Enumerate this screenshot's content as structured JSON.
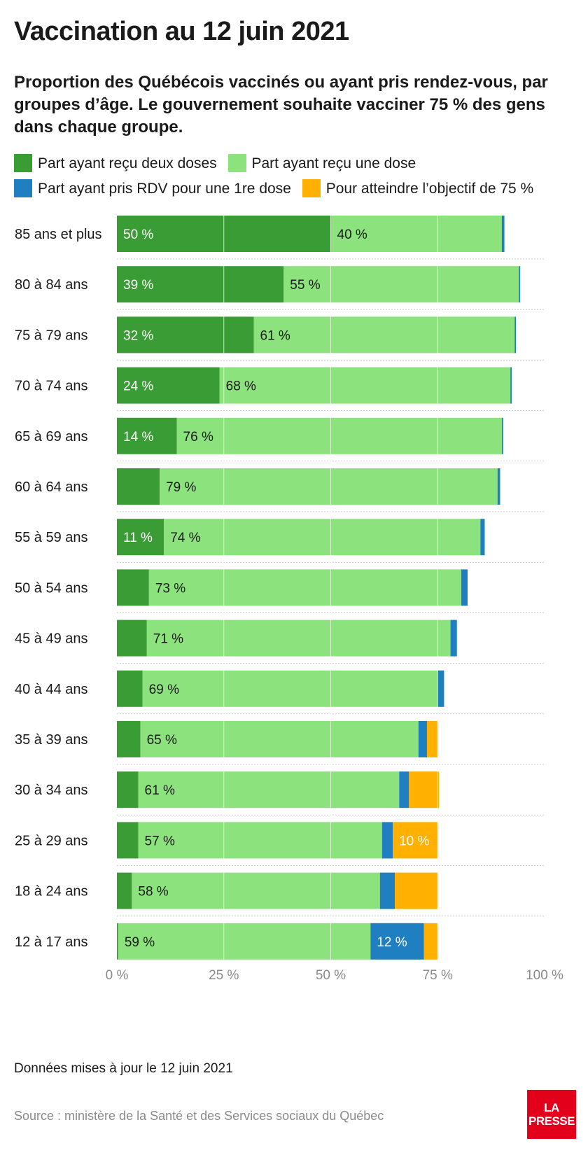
{
  "title": "Vaccination au 12 juin 2021",
  "subtitle": "Proportion des Québécois vaccinés ou ayant pris rendez-vous, par groupes d’âge. Le gouvernement souhaite vacciner 75 % des gens dans chaque groupe.",
  "legend": [
    {
      "label": "Part ayant reçu deux doses",
      "color": "#3a9c35"
    },
    {
      "label": "Part ayant reçu une dose",
      "color": "#8ce27c"
    },
    {
      "label": "Part ayant pris RDV pour une 1re dose",
      "color": "#1f7fc1"
    },
    {
      "label": "Pour atteindre l’objectif de 75 %",
      "color": "#ffb000"
    }
  ],
  "chart_data": {
    "type": "bar",
    "orientation": "horizontal",
    "stacked": true,
    "categories": [
      "85 ans et plus",
      "80 à 84 ans",
      "75 à 79 ans",
      "70 à 74 ans",
      "65 à 69 ans",
      "60 à 64 ans",
      "55 à 59 ans",
      "50 à 54 ans",
      "45 à 49 ans",
      "40 à 44 ans",
      "35 à 39 ans",
      "30 à 34 ans",
      "25 à 29 ans",
      "18 à 24 ans",
      "12 à 17 ans"
    ],
    "series": [
      {
        "name": "Part ayant reçu deux doses",
        "color": "#3a9c35",
        "values": [
          50,
          39,
          32,
          24,
          14,
          10,
          11,
          7.5,
          7,
          6,
          5.5,
          5,
          5,
          3.5,
          0.3
        ],
        "labels": [
          "50 %",
          "39 %",
          "32 %",
          "24 %",
          "14 %",
          "",
          "11 %",
          "",
          "",
          "",
          "",
          "",
          "",
          "",
          ""
        ]
      },
      {
        "name": "Part ayant reçu une dose",
        "color": "#8ce27c",
        "values": [
          40,
          55,
          61,
          68,
          76,
          79,
          74,
          73,
          71,
          69,
          65,
          61,
          57,
          58,
          59
        ],
        "labels": [
          "40 %",
          "55 %",
          "61 %",
          "68 %",
          "76 %",
          "79 %",
          "74 %",
          "73 %",
          "71 %",
          "69 %",
          "65 %",
          "61 %",
          "57 %",
          "58 %",
          "59 %"
        ]
      },
      {
        "name": "Part ayant pris RDV pour une 1re dose",
        "color": "#1f7fc1",
        "values": [
          0.6,
          0.3,
          0.3,
          0.3,
          0.3,
          0.6,
          1,
          1.5,
          1.5,
          1.5,
          2,
          2.3,
          2.5,
          3.5,
          12.5
        ],
        "labels": [
          "",
          "",
          "",
          "",
          "",
          "",
          "",
          "",
          "",
          "",
          "",
          "",
          "",
          "",
          "12 %"
        ]
      },
      {
        "name": "Pour atteindre l’objectif de 75 %",
        "color": "#ffb000",
        "values": [
          0,
          0,
          0,
          0,
          0,
          0,
          0,
          0,
          0,
          0,
          2.5,
          7,
          10.5,
          10,
          3.2
        ],
        "labels": [
          "",
          "",
          "",
          "",
          "",
          "",
          "",
          "",
          "",
          "",
          "",
          "",
          "10 %",
          "",
          ""
        ]
      }
    ],
    "xlim": [
      0,
      100
    ],
    "xticks": [
      0,
      25,
      50,
      75,
      100
    ],
    "xtick_labels": [
      "0 %",
      "25 %",
      "50 %",
      "75 %",
      "100 %"
    ],
    "grid": true
  },
  "footnote": "Données mises à jour le 12 juin 2021",
  "source": "Source : ministère de la Santé et des Services sociaux du Québec",
  "logo": {
    "line1": "LA",
    "line2": "PRESSE"
  }
}
